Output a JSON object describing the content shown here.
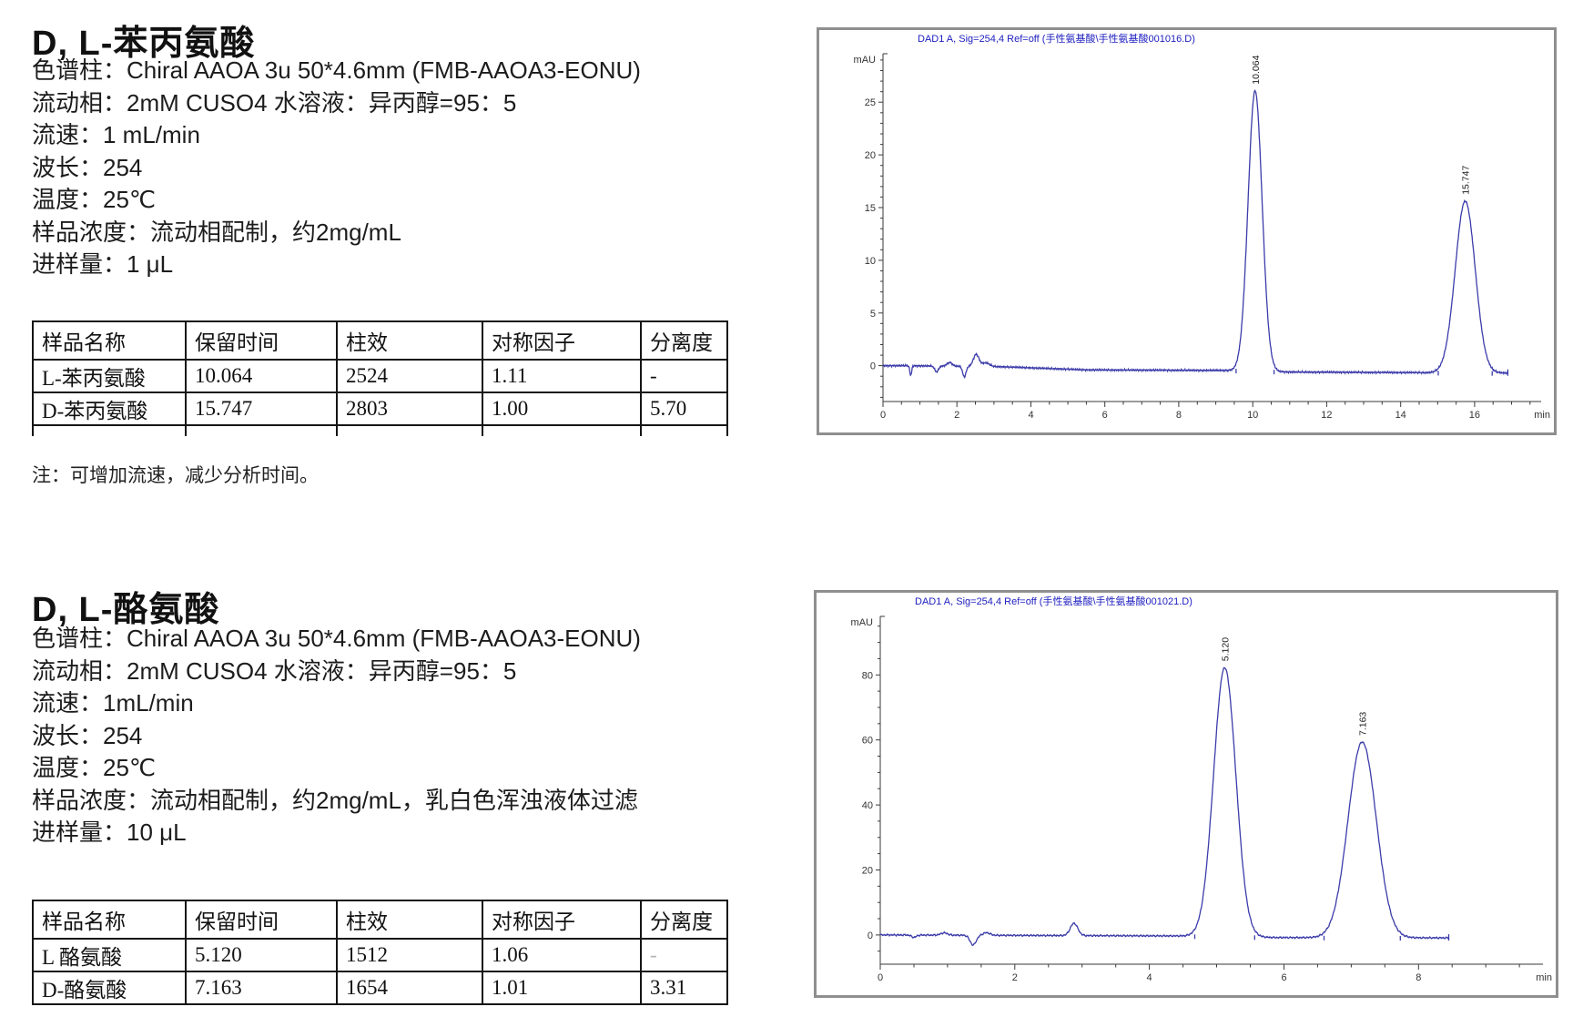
{
  "colors": {
    "trace": "#3c3caa",
    "chart_title": "#2020c0",
    "axis": "#3a3a3a",
    "table_border": "#151515"
  },
  "sections": [
    {
      "title": "D, L-苯丙氨酸",
      "params": [
        "色谱柱：Chiral AAOA 3u 50*4.6mm (FMB-AAOA3-EONU)",
        "流动相：2mM CUSO4 水溶液：异丙醇=95：5",
        "流速：1 mL/min",
        "波长：254",
        "温度：25℃",
        "样品浓度：流动相配制，约2mg/mL",
        "进样量：1 μL"
      ],
      "table": {
        "headers": [
          "样品名称",
          "保留时间",
          "柱效",
          "对称因子",
          "分离度"
        ],
        "rows": [
          [
            "L-苯丙氨酸",
            "10.064",
            "2524",
            "1.11",
            "-"
          ],
          [
            "D-苯丙氨酸",
            "15.747",
            "2803",
            "1.00",
            "5.70"
          ]
        ]
      },
      "note": "注：可增加流速，减少分析时间。"
    },
    {
      "title": "D, L-酪氨酸",
      "params": [
        "色谱柱：Chiral AAOA 3u 50*4.6mm (FMB-AAOA3-EONU)",
        "流动相：2mM CUSO4 水溶液：异丙醇=95：5",
        "流速：1mL/min",
        "波长：254",
        "温度：25℃",
        "样品浓度：流动相配制，约2mg/mL，乳白色浑浊液体过滤",
        "进样量：10 μL"
      ],
      "table": {
        "headers": [
          "样品名称",
          "保留时间",
          "柱效",
          "对称因子",
          "分离度"
        ],
        "rows": [
          [
            "L 酪氨酸",
            "5.120",
            "1512",
            "1.06",
            "-"
          ],
          [
            "D-酪氨酸",
            "7.163",
            "1654",
            "1.01",
            "3.31"
          ]
        ],
        "faint": [
          0,
          4
        ]
      },
      "note": null
    }
  ],
  "chart_data": [
    {
      "type": "line",
      "title": "DAD1 A, Sig=254,4 Ref=off (手性氨基酸\\手性氨基酸001016.D)",
      "ylabel": "mAU",
      "xlabel": "min",
      "view": [
        807,
        442
      ],
      "ylim": [
        -3.4,
        29.6
      ],
      "yticks": [
        0,
        5,
        10,
        15,
        20,
        25
      ],
      "y_minor_step": 1,
      "xlim": [
        0,
        17.8
      ],
      "xticks": [
        0,
        2,
        4,
        6,
        8,
        10,
        12,
        14,
        16
      ],
      "x_minor_step": 0.5,
      "trace_end": 16.9,
      "baseline": [
        [
          0,
          0
        ],
        [
          0.6,
          0
        ],
        [
          3.2,
          -0.1
        ],
        [
          5.5,
          -0.4
        ],
        [
          9.3,
          -0.45
        ],
        [
          11,
          -0.6
        ],
        [
          16.9,
          -0.7
        ]
      ],
      "peaks": [
        {
          "time": 10.064,
          "height": 26.6,
          "sigma": 0.19,
          "label": "10.064"
        },
        {
          "time": 15.747,
          "height": 16.3,
          "sigma": 0.27,
          "label": "15.747"
        }
      ],
      "features": [
        {
          "time": 0.75,
          "height": -0.9,
          "sigma": 0.025
        },
        {
          "time": 1.45,
          "height": -0.55,
          "sigma": 0.05
        },
        {
          "time": 1.8,
          "height": 0.35,
          "sigma": 0.07
        },
        {
          "time": 2.2,
          "height": -1.0,
          "sigma": 0.045
        },
        {
          "time": 2.52,
          "height": 1.15,
          "sigma": 0.075
        },
        {
          "time": 2.78,
          "height": 0.35,
          "sigma": 0.1
        }
      ],
      "noise_amp": 0.1
    },
    {
      "type": "line",
      "title": "DAD1 A, Sig=254,4 Ref=off (手性氨基酸\\手性氨基酸001021.D)",
      "ylabel": "mAU",
      "xlabel": "min",
      "view": [
        812,
        442
      ],
      "ylim": [
        -9,
        98
      ],
      "yticks": [
        0,
        20,
        40,
        60,
        80
      ],
      "y_minor_step": 5,
      "xlim": [
        0,
        9.85
      ],
      "xticks": [
        0,
        2,
        4,
        6,
        8
      ],
      "x_minor_step": 0.5,
      "trace_end": 8.45,
      "baseline": [
        [
          0,
          0
        ],
        [
          4.4,
          -0.3
        ],
        [
          5.9,
          -0.8
        ],
        [
          8.45,
          -0.9
        ]
      ],
      "peaks": [
        {
          "time": 5.12,
          "height": 82.8,
          "sigma": 0.165,
          "label": "5.120"
        },
        {
          "time": 7.163,
          "height": 60.2,
          "sigma": 0.21,
          "label": "7.163"
        }
      ],
      "features": [
        {
          "time": 0.5,
          "height": -0.7,
          "sigma": 0.035
        },
        {
          "time": 0.95,
          "height": 0.7,
          "sigma": 0.05
        },
        {
          "time": 1.38,
          "height": -3.0,
          "sigma": 0.045
        },
        {
          "time": 1.58,
          "height": 0.8,
          "sigma": 0.05
        },
        {
          "time": 2.88,
          "height": 3.8,
          "sigma": 0.055
        }
      ],
      "noise_amp": 0.3
    }
  ]
}
